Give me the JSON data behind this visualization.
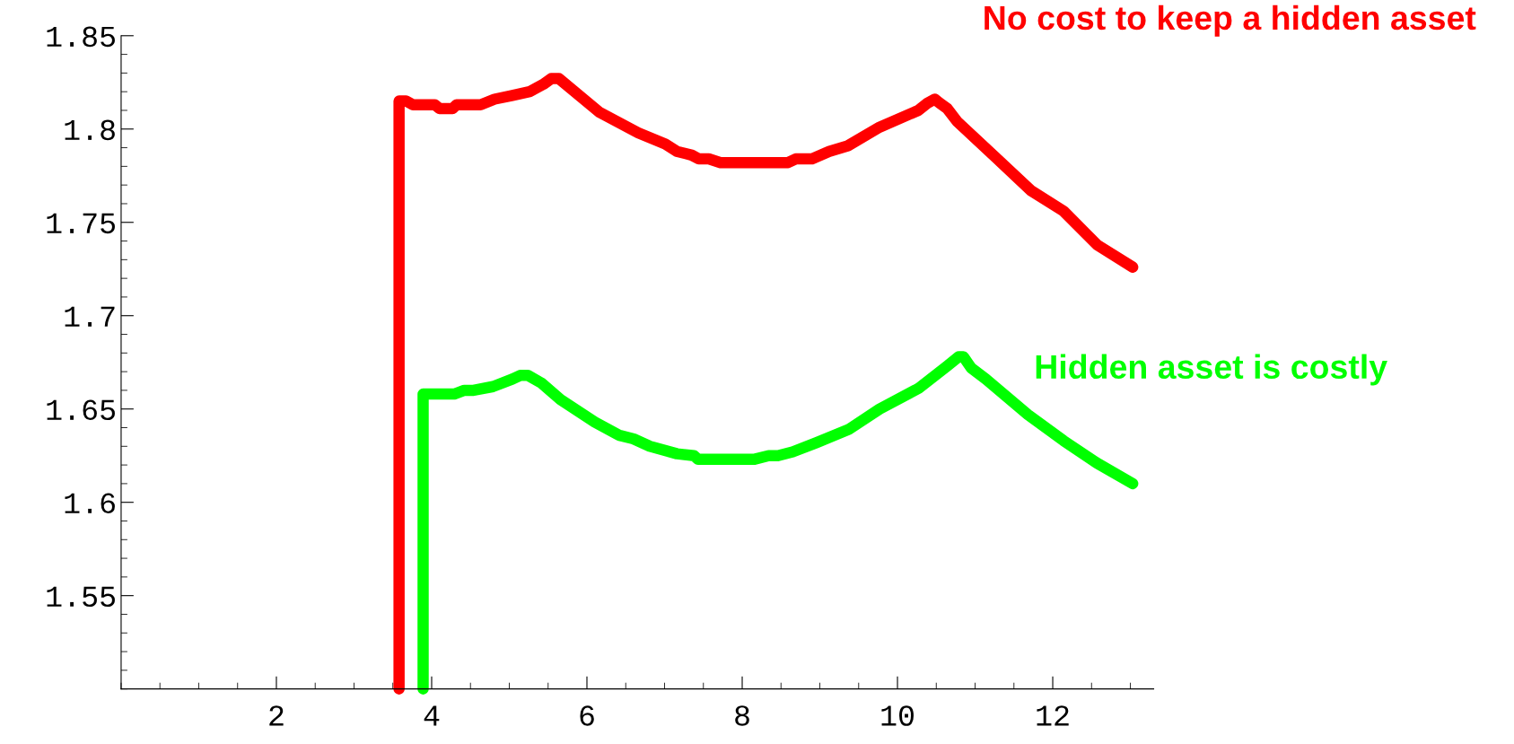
{
  "chart_data": {
    "type": "line",
    "xlim": [
      0,
      13.3
    ],
    "ylim": [
      1.5,
      1.85
    ],
    "xticks": [
      2,
      4,
      6,
      8,
      10,
      12
    ],
    "yticks": [
      1.55,
      1.6,
      1.65,
      1.7,
      1.75,
      1.8,
      1.85
    ],
    "grid": false,
    "legend": false,
    "line_style": "solid",
    "series": [
      {
        "name": "No cost to keep a hidden asset",
        "color": "#ff0000",
        "x": [
          3.58,
          3.58,
          3.67,
          3.76,
          4.04,
          4.1,
          4.27,
          4.32,
          4.63,
          4.81,
          5.04,
          5.26,
          5.44,
          5.54,
          5.64,
          6.16,
          6.66,
          7.01,
          7.16,
          7.35,
          7.44,
          7.57,
          7.72,
          8.59,
          8.69,
          8.9,
          9.12,
          9.36,
          9.77,
          10.27,
          10.39,
          10.48,
          10.54,
          10.64,
          10.77,
          11.26,
          11.72,
          12.14,
          12.57,
          13.03
        ],
        "values": [
          1.5,
          1.815,
          1.815,
          1.813,
          1.813,
          1.811,
          1.811,
          1.813,
          1.813,
          1.816,
          1.818,
          1.82,
          1.824,
          1.827,
          1.827,
          1.809,
          1.798,
          1.792,
          1.788,
          1.786,
          1.784,
          1.784,
          1.782,
          1.782,
          1.784,
          1.784,
          1.788,
          1.791,
          1.801,
          1.81,
          1.814,
          1.816,
          1.814,
          1.811,
          1.804,
          1.785,
          1.767,
          1.756,
          1.738,
          1.726
        ]
      },
      {
        "name": "Hidden asset is costly",
        "color": "#00ff00",
        "x": [
          3.89,
          3.89,
          4.29,
          4.42,
          4.54,
          4.79,
          5.04,
          5.14,
          5.24,
          5.41,
          5.66,
          6.1,
          6.41,
          6.6,
          6.81,
          7.16,
          7.38,
          7.43,
          8.15,
          8.34,
          8.46,
          8.65,
          8.96,
          9.37,
          9.77,
          10.27,
          10.64,
          10.79,
          10.85,
          10.95,
          11.14,
          11.68,
          12.14,
          12.57,
          13.03
        ],
        "values": [
          1.5,
          1.658,
          1.658,
          1.66,
          1.66,
          1.662,
          1.666,
          1.668,
          1.668,
          1.664,
          1.655,
          1.643,
          1.636,
          1.634,
          1.63,
          1.626,
          1.625,
          1.623,
          1.623,
          1.625,
          1.625,
          1.627,
          1.632,
          1.639,
          1.65,
          1.661,
          1.673,
          1.678,
          1.678,
          1.672,
          1.666,
          1.647,
          1.633,
          1.621,
          1.61
        ]
      }
    ]
  }
}
